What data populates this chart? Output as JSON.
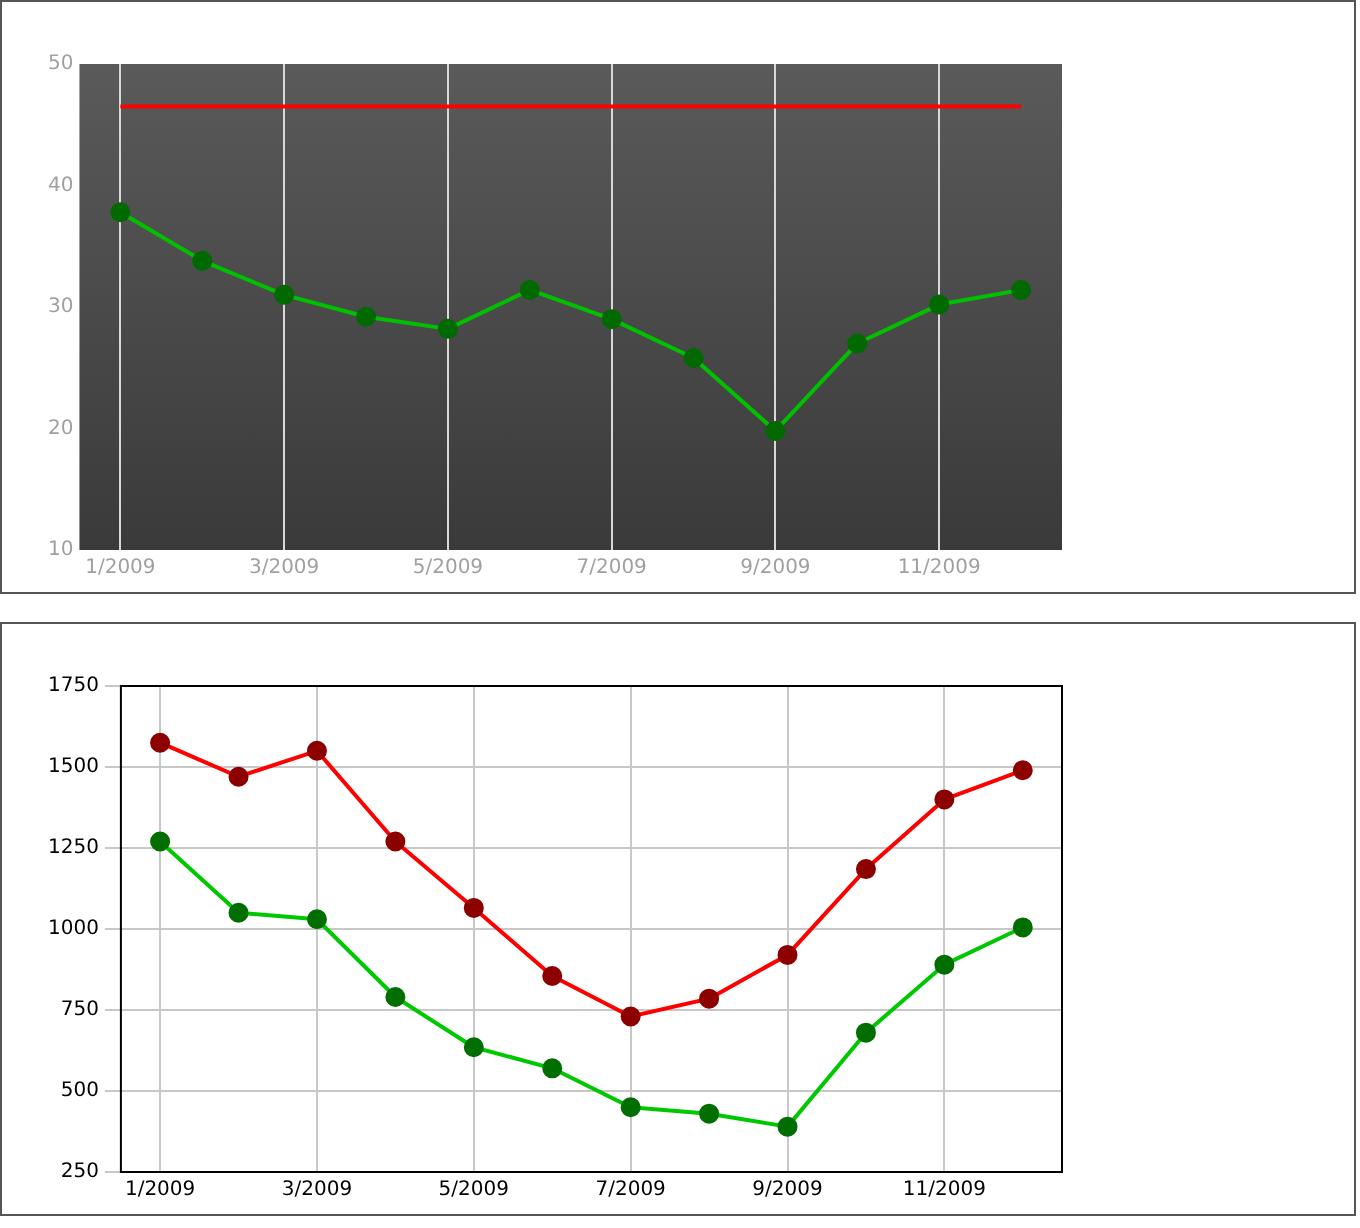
{
  "chart_data": [
    {
      "type": "line",
      "categories": [
        "1/2009",
        null,
        "3/2009",
        null,
        "5/2009",
        null,
        "7/2009",
        null,
        "9/2009",
        null,
        "11/2009",
        null
      ],
      "series": [
        {
          "color": "#00c000",
          "values": [
            37.8,
            33.8,
            31,
            29.2,
            28.2,
            31.4,
            29,
            25.8,
            19.8,
            27,
            30.2,
            31.4
          ],
          "marker": "circle"
        },
        {
          "color": "#ff0000",
          "values": [
            46.5,
            46.5,
            46.5,
            46.5,
            46.5,
            46.5,
            46.5,
            46.5,
            46.5,
            46.5,
            46.5,
            46.5
          ],
          "marker": "none"
        }
      ],
      "ylim": [
        10,
        50
      ],
      "yticks": [
        10,
        20,
        30,
        40,
        50
      ],
      "grid": "x",
      "legend": false
    },
    {
      "type": "line",
      "categories": [
        "1/2009",
        null,
        "3/2009",
        null,
        "5/2009",
        null,
        "7/2009",
        null,
        "9/2009",
        null,
        "11/2009",
        null
      ],
      "series": [
        {
          "color": "#00c800",
          "values": [
            1270,
            1050,
            1030,
            790,
            635,
            570,
            450,
            430,
            390,
            680,
            890,
            1005
          ],
          "marker": "circle"
        },
        {
          "color": "#ff0000",
          "values": [
            1575,
            1470,
            1550,
            1270,
            1065,
            855,
            730,
            785,
            920,
            1185,
            1400,
            1490
          ],
          "marker": "circle"
        }
      ],
      "ylim": [
        250,
        1750
      ],
      "yticks": [
        250,
        500,
        750,
        1000,
        1250,
        1500,
        1750
      ],
      "grid": true,
      "legend": false
    }
  ]
}
